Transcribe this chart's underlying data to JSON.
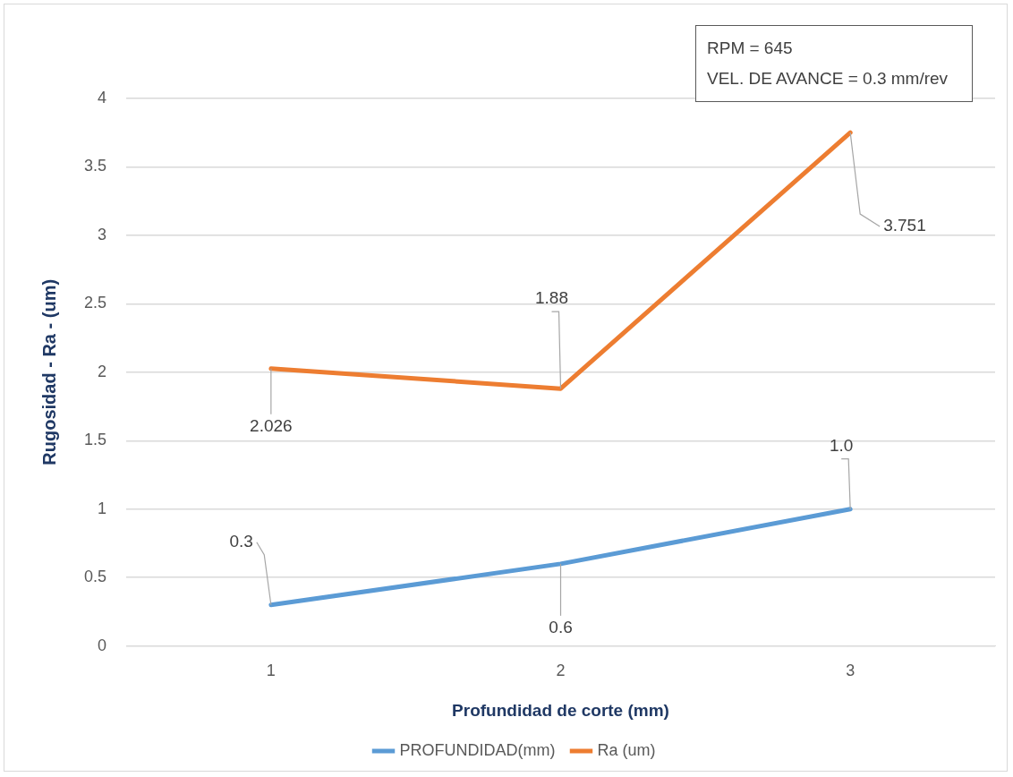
{
  "chart_data": {
    "type": "line",
    "xlabel": "Profundidad de corte (mm)",
    "ylabel": "Rugosidad - Ra - (um)",
    "categories": [
      "1",
      "2",
      "3"
    ],
    "series": [
      {
        "name": "PROFUNDIDAD(mm)",
        "color": "#5b9bd5",
        "values": [
          0.3,
          0.6,
          1.0
        ],
        "value_labels": [
          "0.3",
          "0.6",
          "1.0"
        ]
      },
      {
        "name": "Ra (um)",
        "color": "#ed7d31",
        "values": [
          2.026,
          1.88,
          3.751
        ],
        "value_labels": [
          "2.026",
          "1.88",
          "3.751"
        ]
      }
    ],
    "ylim": [
      0,
      4
    ],
    "yticks": [
      0,
      0.5,
      1,
      1.5,
      2,
      2.5,
      3,
      3.5,
      4
    ],
    "grid": "y",
    "legend": "bottom",
    "marker": "none",
    "line_style": "solid",
    "annotations": [
      "RPM = 645",
      "VEL. DE AVANCE = 0.3 mm/rev"
    ]
  }
}
